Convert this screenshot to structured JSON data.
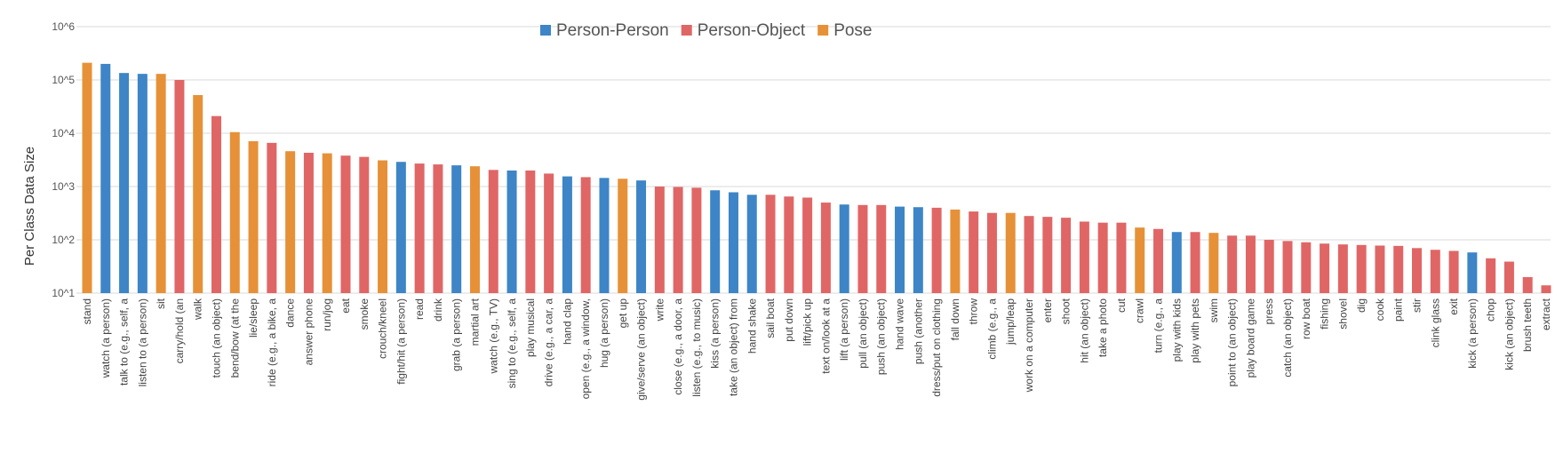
{
  "chart_data": {
    "type": "bar",
    "ylabel": "Per Class Data Size",
    "xlabel": "",
    "yscale": "log",
    "ylim": [
      10,
      1000000
    ],
    "ytick_labels": [
      "10^1",
      "10^2",
      "10^3",
      "10^4",
      "10^5",
      "10^6"
    ],
    "grid": true,
    "legend_position": "top-center",
    "legend": [
      {
        "name": "Person-Person",
        "color": "#3d85c6"
      },
      {
        "name": "Person-Object",
        "color": "#e06666"
      },
      {
        "name": "Pose",
        "color": "#e69138"
      }
    ],
    "categories": [
      "stand",
      "watch (a person)",
      "talk to (e.g., self, a",
      "listen to (a person)",
      "sit",
      "carry/hold (an",
      "walk",
      "touch (an object)",
      "bend/bow (at the",
      "lie/sleep",
      "ride (e.g., a bike, a",
      "dance",
      "answer phone",
      "run/jog",
      "eat",
      "smoke",
      "crouch/kneel",
      "fight/hit (a person)",
      "read",
      "drink",
      "grab (a person)",
      "martial art",
      "watch (e.g., TV)",
      "sing to (e.g., self, a",
      "play musical",
      "drive (e.g., a car, a",
      "hand clap",
      "open (e.g., a window,",
      "hug (a person)",
      "get up",
      "give/serve (an object)",
      "write",
      "close (e.g., a door, a",
      "listen (e.g., to music)",
      "kiss (a person)",
      "take (an object) from",
      "hand shake",
      "sail boat",
      "put down",
      "lift/pick up",
      "text on/look at a",
      "lift (a person)",
      "pull (an object)",
      "push (an object)",
      "hand wave",
      "push (another",
      "dress/put on clothing",
      "fall down",
      "throw",
      "climb (e.g., a",
      "jump/leap",
      "work on a computer",
      "enter",
      "shoot",
      "hit (an object)",
      "take a photo",
      "cut",
      "crawl",
      "turn (e.g., a",
      "play with kids",
      "play with pets",
      "swim",
      "point to (an object)",
      "play board game",
      "press",
      "catch (an object)",
      "row boat",
      "fishing",
      "shovel",
      "dig",
      "cook",
      "paint",
      "stir",
      "clink glass",
      "exit",
      "kick (a person)",
      "chop",
      "kick (an object)",
      "brush teeth",
      "extract"
    ],
    "groups": [
      "Pose",
      "Person-Person",
      "Person-Person",
      "Person-Person",
      "Pose",
      "Person-Object",
      "Pose",
      "Person-Object",
      "Pose",
      "Pose",
      "Person-Object",
      "Pose",
      "Person-Object",
      "Pose",
      "Person-Object",
      "Person-Object",
      "Pose",
      "Person-Person",
      "Person-Object",
      "Person-Object",
      "Person-Person",
      "Pose",
      "Person-Object",
      "Person-Person",
      "Person-Object",
      "Person-Object",
      "Person-Person",
      "Person-Object",
      "Person-Person",
      "Pose",
      "Person-Person",
      "Person-Object",
      "Person-Object",
      "Person-Object",
      "Person-Person",
      "Person-Person",
      "Person-Person",
      "Person-Object",
      "Person-Object",
      "Person-Object",
      "Person-Object",
      "Person-Person",
      "Person-Object",
      "Person-Object",
      "Person-Person",
      "Person-Person",
      "Person-Object",
      "Pose",
      "Person-Object",
      "Person-Object",
      "Pose",
      "Person-Object",
      "Person-Object",
      "Person-Object",
      "Person-Object",
      "Person-Object",
      "Person-Object",
      "Pose",
      "Person-Object",
      "Person-Person",
      "Person-Object",
      "Pose",
      "Person-Object",
      "Person-Object",
      "Person-Object",
      "Person-Object",
      "Person-Object",
      "Person-Object",
      "Person-Object",
      "Person-Object",
      "Person-Object",
      "Person-Object",
      "Person-Object",
      "Person-Object",
      "Person-Object",
      "Person-Person",
      "Person-Object",
      "Person-Object",
      "Person-Object",
      "Person-Object"
    ],
    "values": [
      210000,
      200000,
      135000,
      130000,
      130000,
      100000,
      52000,
      21000,
      10500,
      7100,
      6600,
      4600,
      4300,
      4200,
      3800,
      3600,
      3100,
      2900,
      2700,
      2600,
      2500,
      2400,
      2050,
      2000,
      2000,
      1750,
      1550,
      1500,
      1450,
      1400,
      1300,
      1000,
      980,
      950,
      850,
      780,
      700,
      700,
      650,
      620,
      500,
      460,
      450,
      450,
      420,
      410,
      400,
      370,
      340,
      320,
      320,
      280,
      270,
      260,
      220,
      210,
      210,
      170,
      160,
      140,
      140,
      135,
      120,
      120,
      100,
      95,
      90,
      85,
      82,
      80,
      78,
      77,
      70,
      65,
      62,
      58,
      45,
      39,
      20,
      14
    ]
  }
}
